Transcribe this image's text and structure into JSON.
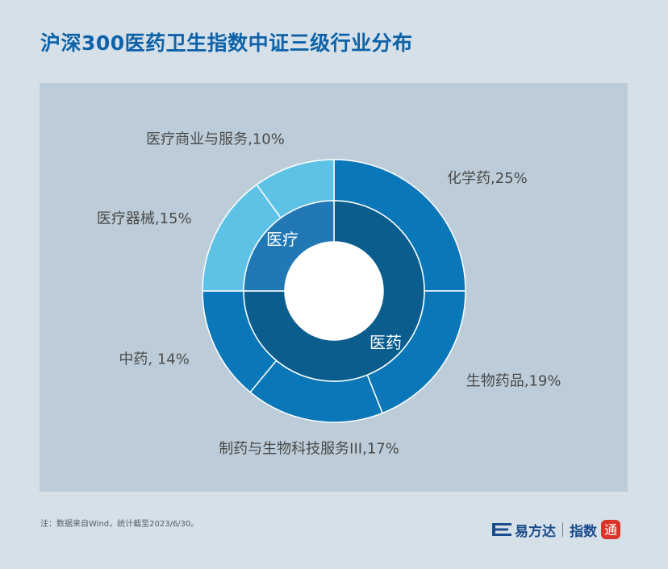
{
  "title": "沪深300医药卫生指数中证三级行业分布",
  "footnote": "注：数据来自Wind，统计截至2023/6/30。",
  "brand": {
    "name": "易方达",
    "sub": "指数",
    "seal_text": "通",
    "logo_icon": "efund-logo-icon"
  },
  "chart_data": {
    "type": "pie",
    "style": "nested-donut",
    "inner_ring": {
      "categories": [
        "医药",
        "医疗"
      ],
      "values": [
        75,
        25
      ],
      "colors": [
        "#0b5d8e",
        "#2178b4"
      ]
    },
    "outer_ring": {
      "categories": [
        "化学药",
        "生物药品",
        "制药与生物科技服务III",
        "中药",
        "医疗器械",
        "医疗商业与服务"
      ],
      "values": [
        25,
        19,
        17,
        14,
        15,
        10
      ],
      "labels": [
        "化学药,25%",
        "生物药品,19%",
        "制药与生物科技服务III,17%",
        "中药, 14%",
        "医疗器械,15%",
        "医疗商业与服务,10%"
      ],
      "colors": [
        "#0a78b8",
        "#0a78b8",
        "#0a78b8",
        "#0a78b8",
        "#5ec2e6",
        "#5ec2e6"
      ]
    }
  }
}
